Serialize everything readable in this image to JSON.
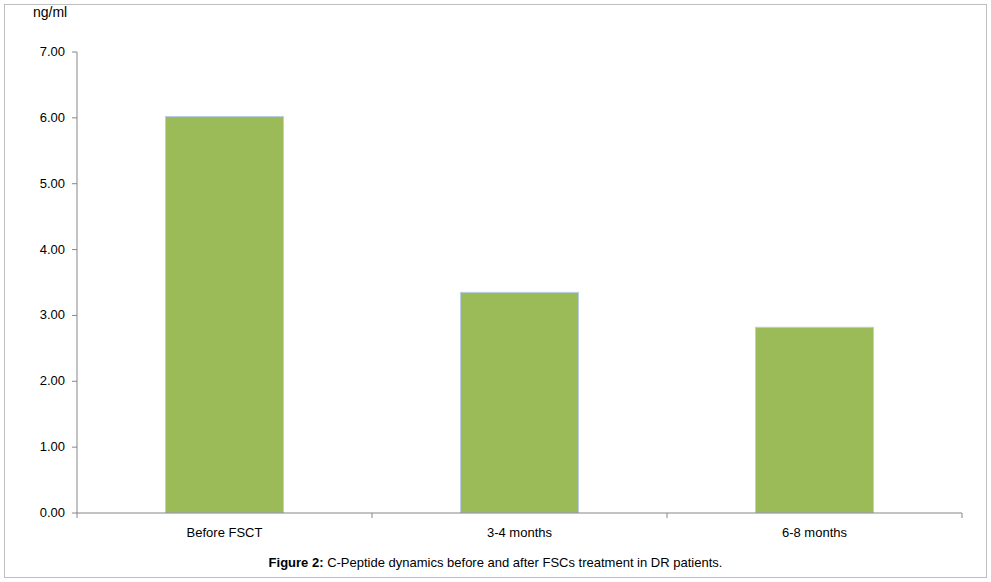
{
  "chart_data": {
    "type": "bar",
    "title": "Figure 2: C-Peptide dynamics before and after FSCs treatment in DR patients.",
    "y_label": "ng/ml",
    "categories": [
      "Before FSCT",
      "3-4 months",
      "6-8 months"
    ],
    "values": [
      6.02,
      3.35,
      2.82
    ],
    "color": "#9bbb59",
    "ylim": [
      0,
      7
    ],
    "yticks": [
      {
        "value": 0,
        "label": "0.00"
      },
      {
        "value": 1,
        "label": "1.00"
      },
      {
        "value": 2,
        "label": "2.00"
      },
      {
        "value": 3,
        "label": "3.00"
      },
      {
        "value": 4,
        "label": "4.00"
      },
      {
        "value": 5,
        "label": "5.00"
      },
      {
        "value": 6,
        "label": "6.00"
      },
      {
        "value": 7,
        "label": "7.00"
      }
    ],
    "grid": false
  }
}
